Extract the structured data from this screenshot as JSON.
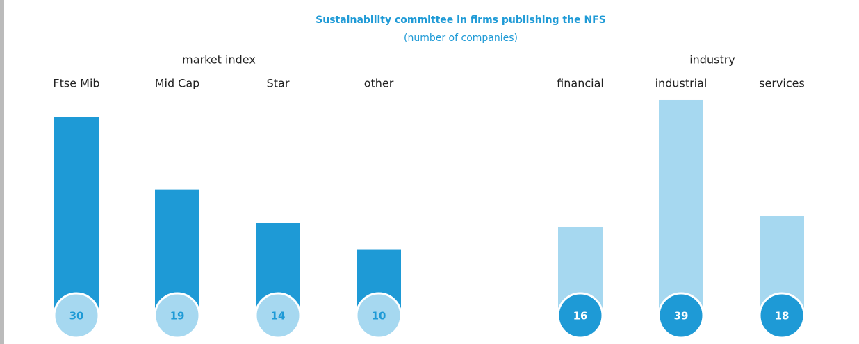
{
  "title": "Sustainability committee  in firms  publishing the NFS",
  "subtitle": "(number of companies)",
  "chart_data": [
    {
      "type": "bar",
      "title": "market index",
      "categories": [
        "Ftse Mib",
        "Mid Cap",
        "Star",
        "other"
      ],
      "values": [
        30,
        19,
        14,
        10
      ],
      "color": "#1e9ad6",
      "label_color": "#a6d8f0",
      "ylim": [
        0,
        33
      ]
    },
    {
      "type": "bar",
      "title": "industry",
      "categories": [
        "financial",
        "industrial",
        "services"
      ],
      "values": [
        16,
        39,
        18
      ],
      "color": "#a6d8f0",
      "label_color": "#1e9ad6",
      "ylim": [
        0,
        39.5
      ]
    }
  ]
}
